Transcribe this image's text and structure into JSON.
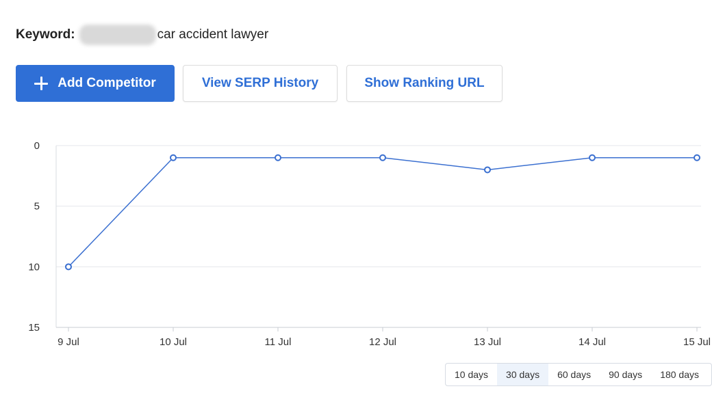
{
  "keyword": {
    "label": "Keyword:",
    "text": "car accident lawyer"
  },
  "toolbar": {
    "add_competitor": "Add Competitor",
    "view_serp_history": "View SERP History",
    "show_ranking_url": "Show Ranking URL"
  },
  "colors": {
    "primary": "#2f6fd6",
    "line": "#3a6fd0",
    "grid": "#e5e7eb"
  },
  "chart_data": {
    "type": "line",
    "x": [
      "9 Jul",
      "10 Jul",
      "11 Jul",
      "12 Jul",
      "13 Jul",
      "14 Jul",
      "15 Jul"
    ],
    "series": [
      {
        "values": [
          10,
          1,
          1,
          1,
          2,
          1,
          1
        ]
      }
    ],
    "y_ticks": [
      "0",
      "5",
      "10",
      "15"
    ],
    "ylim": [
      0,
      15
    ],
    "y_reversed": true,
    "grid": true
  },
  "range_options": [
    "10 days",
    "30 days",
    "60 days",
    "90 days",
    "180 days"
  ],
  "range_selected": "30 days"
}
